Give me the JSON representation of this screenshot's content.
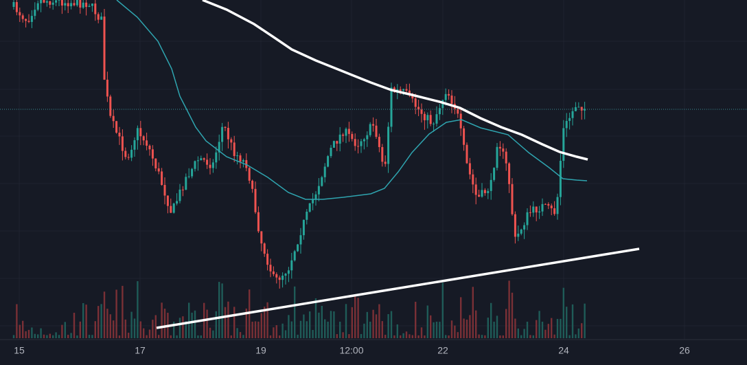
{
  "x_axis": {
    "labels": [
      "15",
      "17",
      "19",
      "12:00",
      "22",
      "24",
      "26"
    ]
  }
}
